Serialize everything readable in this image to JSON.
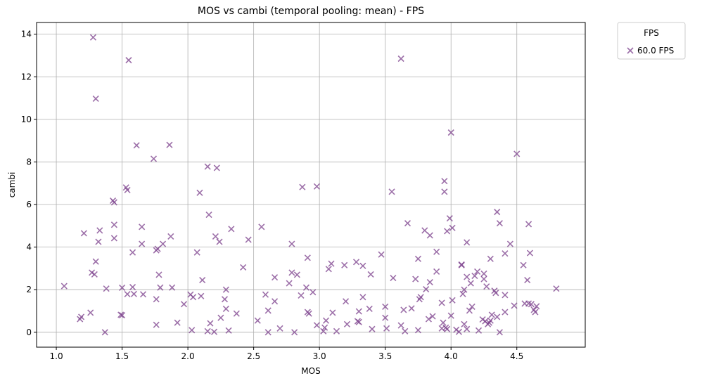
{
  "chart_data": {
    "type": "scatter",
    "title": "MOS vs cambi (temporal pooling: mean) - FPS",
    "xlabel": "MOS",
    "ylabel": "cambi",
    "xlim": [
      0.85,
      5.02
    ],
    "ylim": [
      -0.7,
      14.55
    ],
    "xticks": [
      "1.0",
      "1.5",
      "2.0",
      "2.5",
      "3.0",
      "3.5",
      "4.0",
      "4.5"
    ],
    "yticks": [
      "0",
      "2",
      "4",
      "6",
      "8",
      "10",
      "12",
      "14"
    ],
    "grid": true,
    "legend": {
      "title": "FPS",
      "placement": "outside-top-right"
    },
    "marker_color": "#7b3f8c",
    "series": [
      {
        "name": "60.0 FPS",
        "marker": "x",
        "points": [
          [
            1.06,
            2.17
          ],
          [
            1.18,
            0.62
          ],
          [
            1.19,
            0.72
          ],
          [
            1.21,
            4.65
          ],
          [
            1.26,
            0.92
          ],
          [
            1.27,
            2.8
          ],
          [
            1.28,
            13.85
          ],
          [
            1.3,
            10.97
          ],
          [
            1.29,
            2.72
          ],
          [
            1.3,
            3.32
          ],
          [
            1.32,
            4.25
          ],
          [
            1.33,
            4.78
          ],
          [
            1.37,
            0.0
          ],
          [
            1.38,
            2.05
          ],
          [
            1.43,
            6.18
          ],
          [
            1.44,
            6.1
          ],
          [
            1.44,
            5.05
          ],
          [
            1.44,
            4.42
          ],
          [
            1.49,
            0.82
          ],
          [
            1.5,
            0.8
          ],
          [
            1.5,
            2.09
          ],
          [
            1.53,
            6.8
          ],
          [
            1.54,
            6.68
          ],
          [
            1.55,
            12.78
          ],
          [
            1.54,
            1.79
          ],
          [
            1.58,
            3.75
          ],
          [
            1.58,
            2.12
          ],
          [
            1.59,
            1.8
          ],
          [
            1.61,
            8.78
          ],
          [
            1.65,
            4.95
          ],
          [
            1.65,
            4.15
          ],
          [
            1.66,
            1.78
          ],
          [
            1.74,
            8.15
          ],
          [
            1.76,
            3.85
          ],
          [
            1.77,
            3.92
          ],
          [
            1.76,
            1.55
          ],
          [
            1.76,
            0.35
          ],
          [
            1.78,
            2.7
          ],
          [
            1.79,
            2.1
          ],
          [
            1.81,
            4.15
          ],
          [
            1.86,
            8.8
          ],
          [
            1.87,
            4.5
          ],
          [
            1.88,
            2.1
          ],
          [
            1.92,
            0.45
          ],
          [
            1.97,
            1.32
          ],
          [
            2.02,
            1.77
          ],
          [
            2.04,
            1.65
          ],
          [
            2.03,
            0.1
          ],
          [
            2.07,
            3.75
          ],
          [
            2.09,
            6.55
          ],
          [
            2.1,
            1.7
          ],
          [
            2.11,
            2.45
          ],
          [
            2.15,
            7.78
          ],
          [
            2.15,
            0.05
          ],
          [
            2.16,
            5.52
          ],
          [
            2.17,
            0.42
          ],
          [
            2.2,
            0.02
          ],
          [
            2.22,
            7.72
          ],
          [
            2.21,
            4.5
          ],
          [
            2.24,
            4.25
          ],
          [
            2.25,
            0.68
          ],
          [
            2.28,
            1.55
          ],
          [
            2.29,
            1.1
          ],
          [
            2.29,
            2.0
          ],
          [
            2.31,
            0.08
          ],
          [
            2.33,
            4.85
          ],
          [
            2.37,
            0.88
          ],
          [
            2.42,
            3.05
          ],
          [
            2.46,
            4.35
          ],
          [
            2.53,
            0.55
          ],
          [
            2.56,
            4.95
          ],
          [
            2.59,
            1.77
          ],
          [
            2.61,
            1.02
          ],
          [
            2.61,
            0.0
          ],
          [
            2.66,
            1.45
          ],
          [
            2.66,
            2.58
          ],
          [
            2.7,
            0.18
          ],
          [
            2.77,
            2.3
          ],
          [
            2.79,
            2.8
          ],
          [
            2.79,
            4.15
          ],
          [
            2.81,
            0.0
          ],
          [
            2.83,
            2.7
          ],
          [
            2.86,
            1.73
          ],
          [
            2.87,
            6.82
          ],
          [
            2.9,
            2.1
          ],
          [
            2.91,
            3.5
          ],
          [
            2.91,
            0.95
          ],
          [
            2.92,
            0.88
          ],
          [
            2.95,
            1.88
          ],
          [
            2.98,
            6.85
          ],
          [
            2.98,
            0.33
          ],
          [
            3.03,
            0.05
          ],
          [
            3.04,
            0.22
          ],
          [
            3.05,
            0.55
          ],
          [
            3.07,
            2.97
          ],
          [
            3.09,
            3.22
          ],
          [
            3.1,
            0.92
          ],
          [
            3.13,
            0.05
          ],
          [
            3.19,
            3.15
          ],
          [
            3.2,
            1.45
          ],
          [
            3.21,
            0.38
          ],
          [
            3.28,
            3.3
          ],
          [
            3.29,
            0.52
          ],
          [
            3.3,
            0.48
          ],
          [
            3.3,
            0.98
          ],
          [
            3.33,
            3.12
          ],
          [
            3.33,
            1.65
          ],
          [
            3.38,
            1.1
          ],
          [
            3.39,
            2.72
          ],
          [
            3.4,
            0.15
          ],
          [
            3.47,
            3.65
          ],
          [
            3.5,
            1.2
          ],
          [
            3.5,
            0.68
          ],
          [
            3.51,
            0.18
          ],
          [
            3.55,
            6.6
          ],
          [
            3.56,
            2.55
          ],
          [
            3.62,
            12.85
          ],
          [
            3.62,
            0.32
          ],
          [
            3.64,
            1.05
          ],
          [
            3.65,
            0.05
          ],
          [
            3.67,
            5.12
          ],
          [
            3.7,
            1.12
          ],
          [
            3.73,
            2.5
          ],
          [
            3.75,
            3.45
          ],
          [
            3.75,
            0.1
          ],
          [
            3.76,
            1.55
          ],
          [
            3.77,
            1.65
          ],
          [
            3.8,
            4.78
          ],
          [
            3.81,
            2.02
          ],
          [
            3.83,
            0.62
          ],
          [
            3.84,
            2.35
          ],
          [
            3.84,
            4.55
          ],
          [
            3.86,
            0.75
          ],
          [
            3.89,
            2.85
          ],
          [
            3.89,
            3.78
          ],
          [
            3.93,
            0.18
          ],
          [
            3.93,
            1.38
          ],
          [
            3.94,
            0.45
          ],
          [
            3.95,
            7.1
          ],
          [
            3.95,
            6.6
          ],
          [
            3.96,
            0.22
          ],
          [
            3.97,
            4.75
          ],
          [
            3.97,
            0.15
          ],
          [
            4.0,
            9.38
          ],
          [
            3.99,
            5.35
          ],
          [
            4.0,
            0.78
          ],
          [
            4.01,
            4.9
          ],
          [
            4.01,
            1.5
          ],
          [
            4.04,
            0.12
          ],
          [
            4.06,
            0.02
          ],
          [
            4.08,
            3.18
          ],
          [
            4.08,
            3.15
          ],
          [
            4.09,
            1.8
          ],
          [
            4.1,
            2.0
          ],
          [
            4.1,
            0.38
          ],
          [
            4.12,
            4.22
          ],
          [
            4.12,
            2.6
          ],
          [
            4.12,
            0.15
          ],
          [
            4.14,
            1.02
          ],
          [
            4.15,
            2.3
          ],
          [
            4.16,
            1.2
          ],
          [
            4.18,
            2.65
          ],
          [
            4.2,
            2.85
          ],
          [
            4.21,
            0.08
          ],
          [
            4.24,
            0.6
          ],
          [
            4.25,
            2.75
          ],
          [
            4.25,
            2.5
          ],
          [
            4.26,
            0.52
          ],
          [
            4.27,
            2.15
          ],
          [
            4.28,
            0.38
          ],
          [
            4.29,
            0.45
          ],
          [
            4.3,
            0.55
          ],
          [
            4.3,
            3.45
          ],
          [
            4.31,
            0.82
          ],
          [
            4.33,
            1.95
          ],
          [
            4.34,
            1.85
          ],
          [
            4.35,
            5.65
          ],
          [
            4.35,
            0.72
          ],
          [
            4.37,
            5.12
          ],
          [
            4.37,
            0.0
          ],
          [
            4.41,
            3.7
          ],
          [
            4.41,
            1.75
          ],
          [
            4.41,
            0.95
          ],
          [
            4.45,
            4.15
          ],
          [
            4.48,
            1.25
          ],
          [
            4.5,
            8.38
          ],
          [
            4.55,
            3.15
          ],
          [
            4.56,
            1.35
          ],
          [
            4.58,
            2.45
          ],
          [
            4.59,
            5.08
          ],
          [
            4.59,
            1.35
          ],
          [
            4.6,
            3.72
          ],
          [
            4.61,
            1.32
          ],
          [
            4.63,
            1.05
          ],
          [
            4.64,
            0.95
          ],
          [
            4.65,
            1.22
          ],
          [
            4.8,
            2.05
          ]
        ]
      }
    ]
  }
}
